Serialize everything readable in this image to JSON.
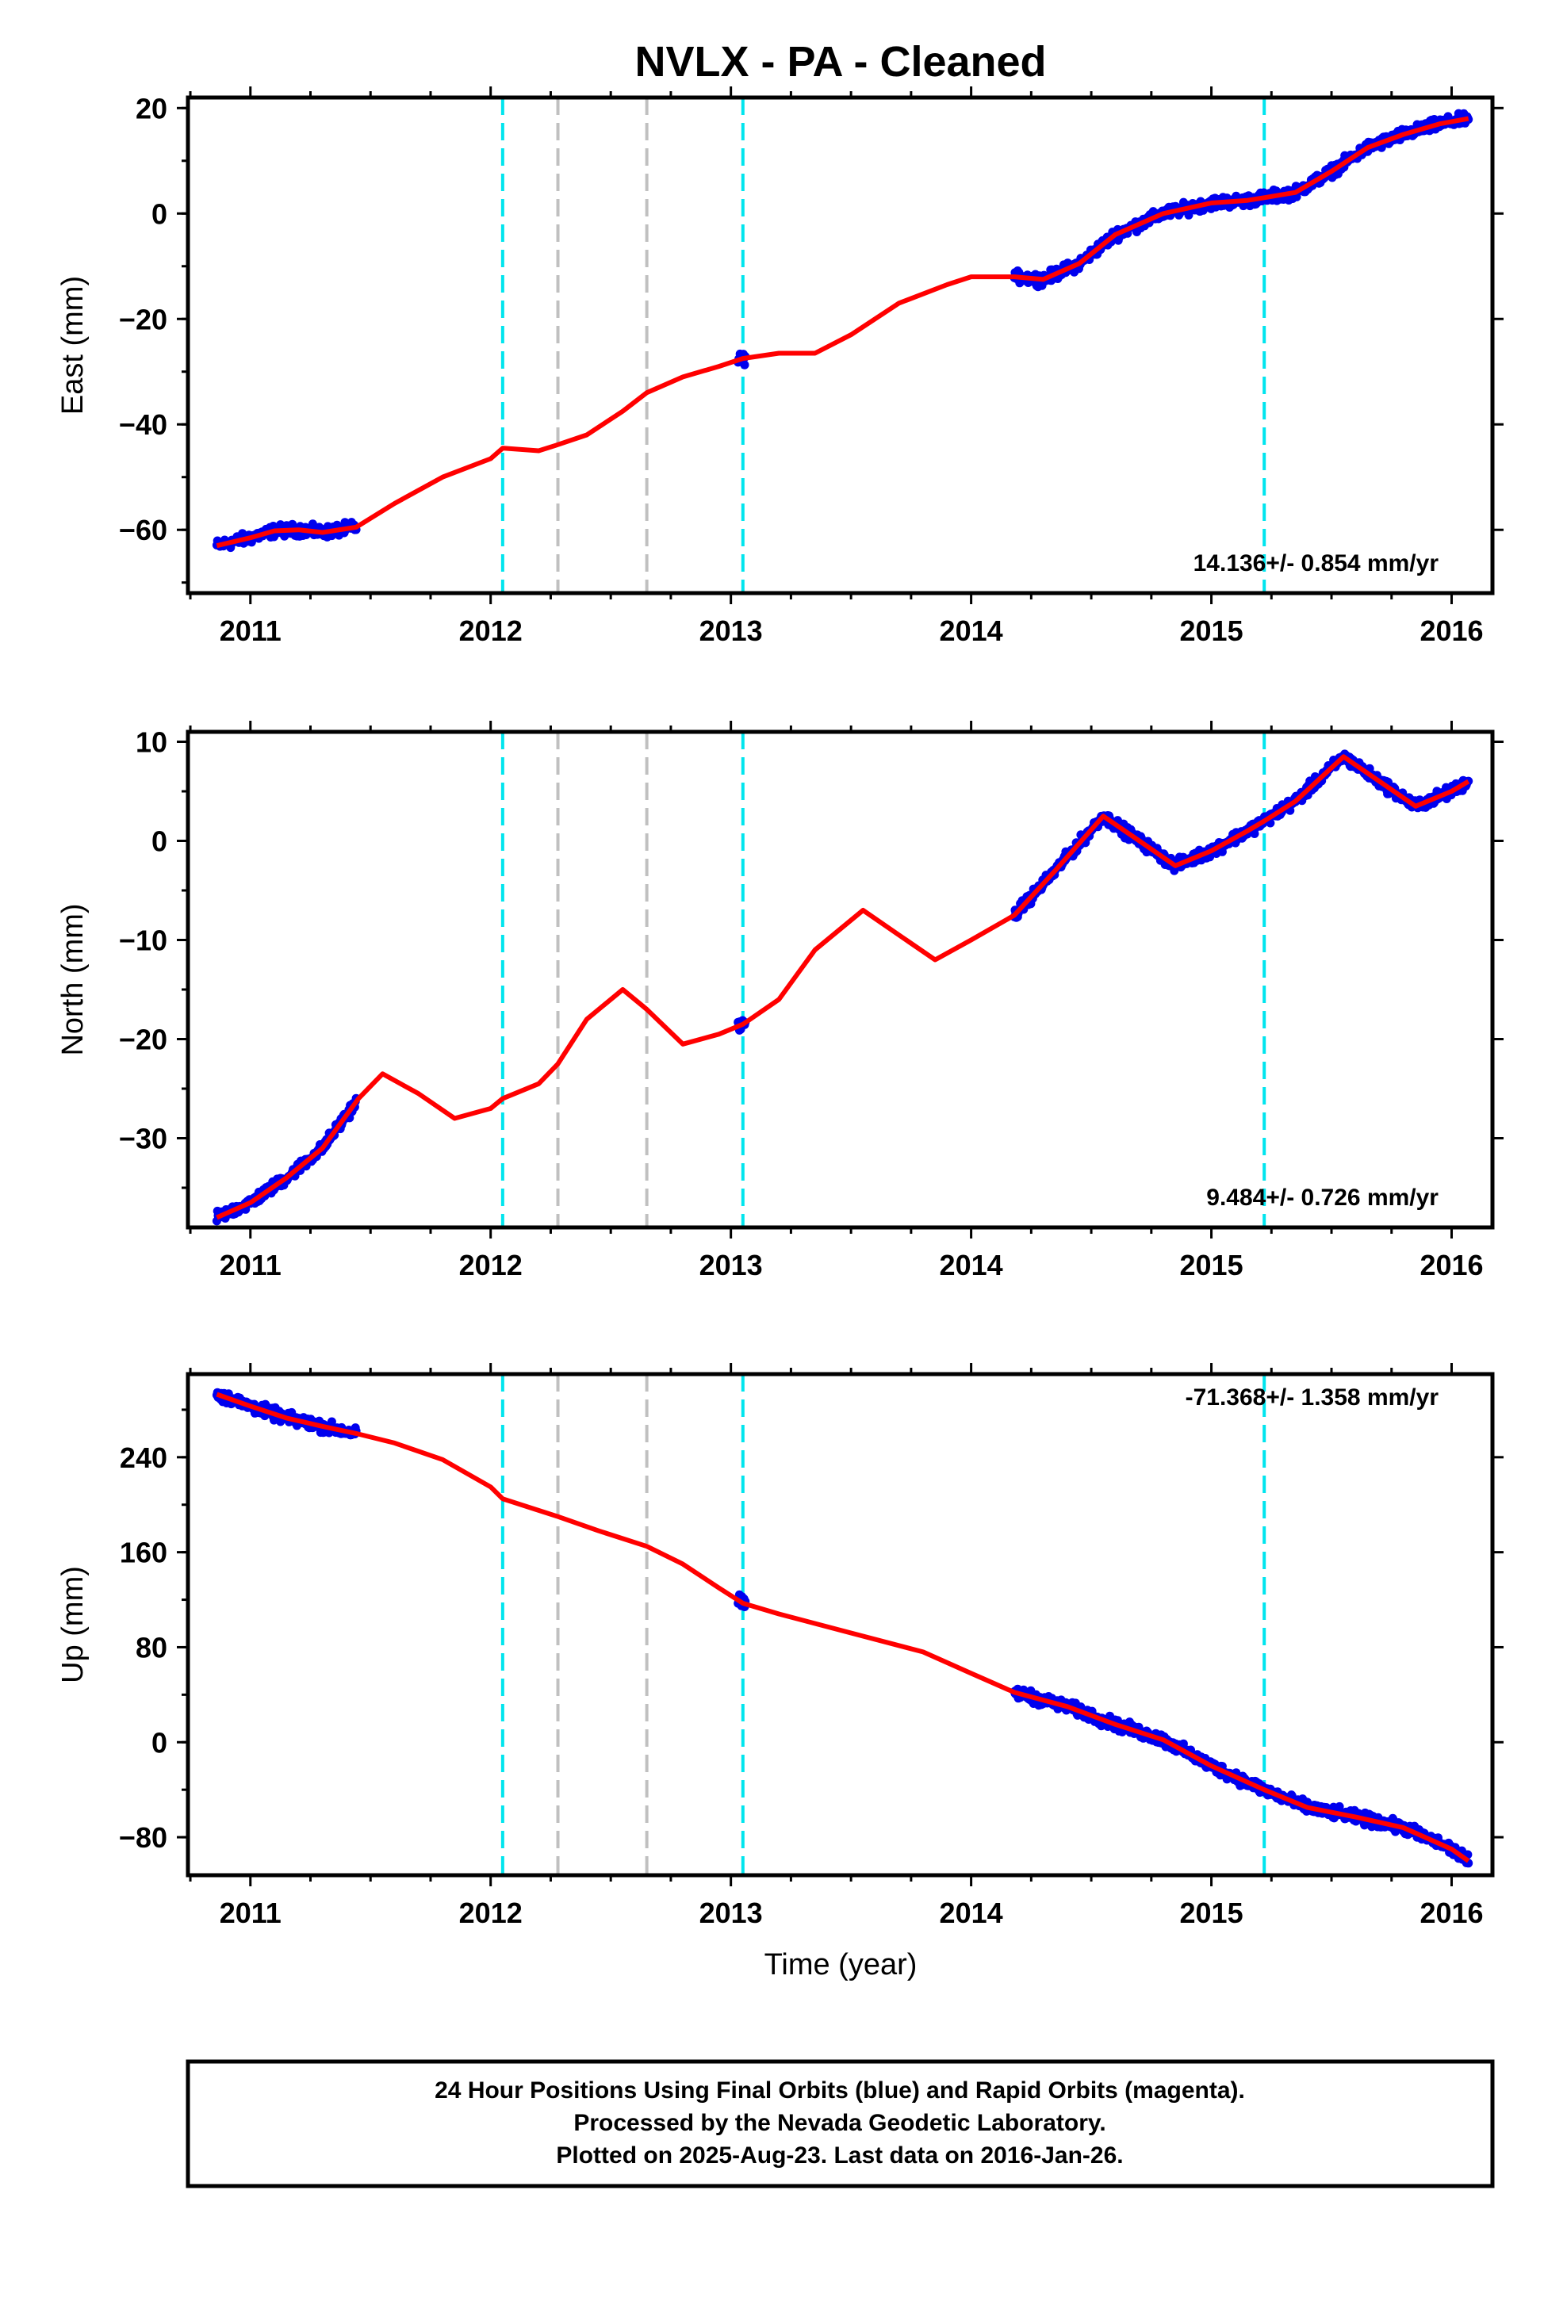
{
  "chart": {
    "title": "NVLX  - PA - Cleaned",
    "xlabel": "Time (year)"
  },
  "footer": {
    "line1": "24 Hour Positions Using Final Orbits (blue) and Rapid Orbits (magenta).",
    "line2": "Processed by the Nevada Geodetic Laboratory.",
    "line3": "Plotted on 2025-Aug-23. Last data on 2016-Jan-26."
  },
  "colors": {
    "final_points": "#0000ee",
    "model": "#ff0000",
    "equipment_change": "#00e5ee",
    "earthquake": "#c0c0c0"
  },
  "chart_data": [
    {
      "type": "scatter",
      "panel": "east",
      "ylabel": "East (mm)",
      "rate_label": "14.136+/- 0.854 mm/yr",
      "xlim": [
        2010.74,
        2016.17
      ],
      "ylim": [
        -72,
        22
      ],
      "xticks": [
        2011,
        2012,
        2013,
        2014,
        2015,
        2016
      ],
      "yticks": [
        -60,
        -40,
        -20,
        0,
        20
      ],
      "equipment_changes": [
        2012.05,
        2013.05,
        2015.22
      ],
      "earthquakes": [
        2012.28,
        2012.65
      ],
      "data_segments": [
        [
          2010.86,
          2011.44
        ],
        [
          2013.03,
          2013.06
        ],
        [
          2014.18,
          2016.07
        ]
      ],
      "model": {
        "x": [
          2010.86,
          2011.0,
          2011.1,
          2011.2,
          2011.3,
          2011.44,
          2011.6,
          2011.8,
          2012.0,
          2012.05,
          2012.2,
          2012.27,
          2012.4,
          2012.55,
          2012.65,
          2012.8,
          2012.95,
          2013.05,
          2013.2,
          2013.35,
          2013.5,
          2013.7,
          2013.9,
          2014.0,
          2014.18,
          2014.3,
          2014.45,
          2014.6,
          2014.8,
          2015.0,
          2015.15,
          2015.22,
          2015.35,
          2015.5,
          2015.65,
          2015.8,
          2015.95,
          2016.07
        ],
        "y": [
          -63,
          -61.5,
          -60.2,
          -60,
          -60.5,
          -59.5,
          -55,
          -50,
          -46.5,
          -44.5,
          -45,
          -44,
          -42,
          -37.5,
          -34,
          -31,
          -29,
          -27.5,
          -26.5,
          -26.5,
          -23,
          -17,
          -13.5,
          -12,
          -12,
          -12.5,
          -9.5,
          -4,
          0,
          2,
          2.5,
          3,
          4,
          8,
          12.5,
          15,
          17,
          18
        ]
      }
    },
    {
      "type": "scatter",
      "panel": "north",
      "ylabel": "North (mm)",
      "rate_label": "9.484+/- 0.726 mm/yr",
      "xlim": [
        2010.74,
        2016.17
      ],
      "ylim": [
        -39,
        11
      ],
      "xticks": [
        2011,
        2012,
        2013,
        2014,
        2015,
        2016
      ],
      "yticks": [
        -30,
        -20,
        -10,
        0,
        10
      ],
      "equipment_changes": [
        2012.05,
        2013.05,
        2015.22
      ],
      "earthquakes": [
        2012.28,
        2012.65
      ],
      "data_segments": [
        [
          2010.86,
          2011.44
        ],
        [
          2013.03,
          2013.06
        ],
        [
          2014.18,
          2016.07
        ]
      ],
      "model": {
        "x": [
          2010.86,
          2011.0,
          2011.15,
          2011.3,
          2011.45,
          2011.55,
          2011.7,
          2011.85,
          2012.0,
          2012.05,
          2012.2,
          2012.28,
          2012.4,
          2012.55,
          2012.65,
          2012.8,
          2012.95,
          2013.05,
          2013.2,
          2013.35,
          2013.55,
          2013.7,
          2013.85,
          2014.0,
          2014.18,
          2014.35,
          2014.55,
          2014.7,
          2014.85,
          2015.0,
          2015.15,
          2015.22,
          2015.35,
          2015.55,
          2015.7,
          2015.85,
          2016.0,
          2016.07
        ],
        "y": [
          -38,
          -36.5,
          -34,
          -31,
          -26,
          -23.5,
          -25.5,
          -28,
          -27,
          -26,
          -24.5,
          -22.5,
          -18,
          -15,
          -17,
          -20.5,
          -19.5,
          -18.5,
          -16,
          -11,
          -7,
          -9.5,
          -12,
          -10,
          -7.5,
          -3,
          2.5,
          0,
          -2.5,
          -1,
          1,
          2,
          4,
          8.5,
          6,
          3.5,
          5,
          6
        ]
      }
    },
    {
      "type": "scatter",
      "panel": "up",
      "ylabel": "Up (mm)",
      "rate_label": "-71.368+/- 1.358 mm/yr",
      "xlim": [
        2010.74,
        2016.17
      ],
      "ylim": [
        -112,
        310
      ],
      "xticks": [
        2011,
        2012,
        2013,
        2014,
        2015,
        2016
      ],
      "yticks": [
        -80,
        0,
        80,
        160,
        240
      ],
      "equipment_changes": [
        2012.05,
        2013.05,
        2015.22
      ],
      "earthquakes": [
        2012.28,
        2012.65
      ],
      "data_segments": [
        [
          2010.86,
          2011.44
        ],
        [
          2013.03,
          2013.06
        ],
        [
          2014.18,
          2016.07
        ]
      ],
      "model": {
        "x": [
          2010.86,
          2011.0,
          2011.15,
          2011.3,
          2011.44,
          2011.6,
          2011.8,
          2012.0,
          2012.05,
          2012.28,
          2012.45,
          2012.65,
          2012.8,
          2012.95,
          2013.05,
          2013.2,
          2013.5,
          2013.8,
          2014.0,
          2014.18,
          2014.4,
          2014.6,
          2014.8,
          2015.0,
          2015.22,
          2015.4,
          2015.6,
          2015.8,
          2016.0,
          2016.07
        ],
        "y": [
          293,
          283,
          273,
          266,
          260,
          252,
          238,
          215,
          205,
          190,
          178,
          165,
          150,
          130,
          117,
          108,
          92,
          76,
          58,
          42,
          30,
          15,
          2,
          -20,
          -40,
          -55,
          -63,
          -72,
          -90,
          -100
        ]
      }
    }
  ]
}
